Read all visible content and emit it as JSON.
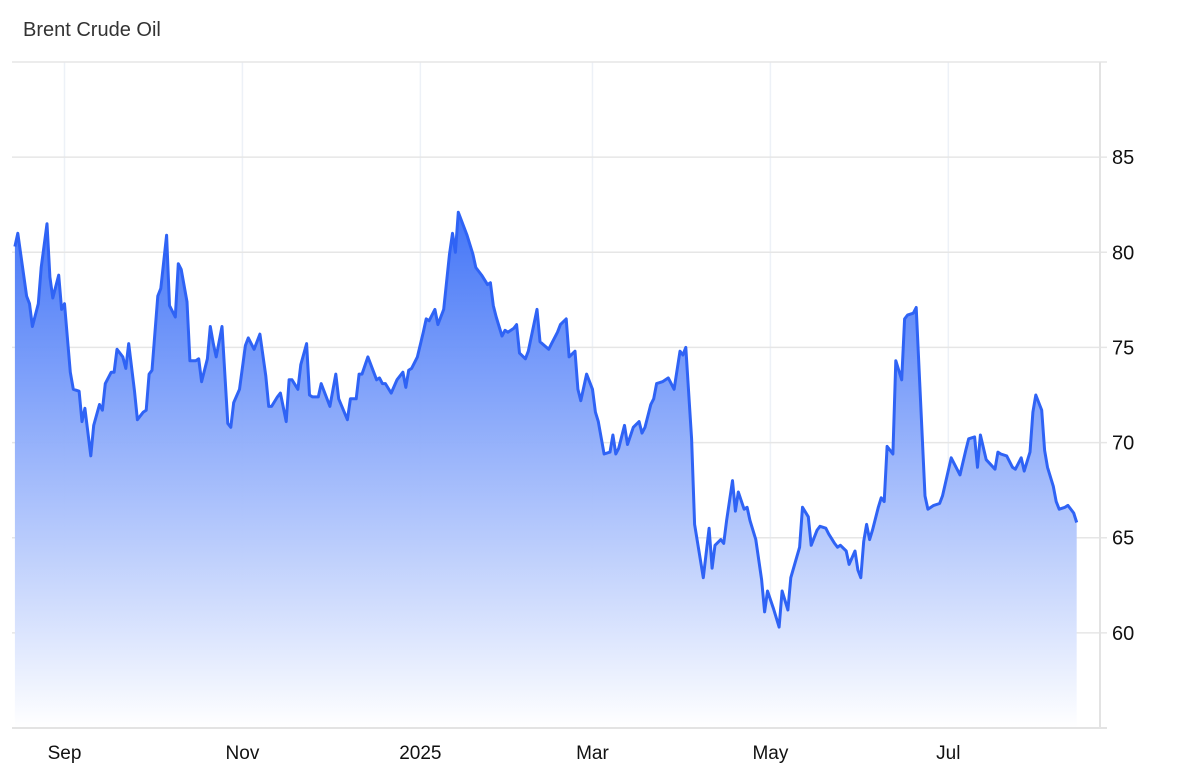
{
  "chart_data": {
    "type": "area",
    "title": "Brent Crude Oil",
    "xlabel": "",
    "ylabel": "",
    "xlim": [
      "2024-08-14",
      "2025-08-22"
    ],
    "ylim": [
      55,
      90
    ],
    "y_ticks": [
      60,
      65,
      70,
      75,
      80,
      85
    ],
    "x_ticks": [
      {
        "date": "2024-09-01",
        "label": "Sep"
      },
      {
        "date": "2024-11-01",
        "label": "Nov"
      },
      {
        "date": "2025-01-01",
        "label": "2025"
      },
      {
        "date": "2025-03-01",
        "label": "Mar"
      },
      {
        "date": "2025-05-01",
        "label": "May"
      },
      {
        "date": "2025-07-01",
        "label": "Jul"
      }
    ],
    "y_axis_position": "right",
    "grid": true,
    "colors": {
      "line": "#2f63f5",
      "fill_top": "#3b6ff7",
      "fill_bottom": "#ffffff",
      "grid": "#e6e6e6",
      "vgrid": "#edf1f7"
    },
    "series": [
      {
        "points": [
          [
            "2024-08-15",
            80.3
          ],
          [
            "2024-08-16",
            81.0
          ],
          [
            "2024-08-19",
            77.7
          ],
          [
            "2024-08-20",
            77.3
          ],
          [
            "2024-08-21",
            76.1
          ],
          [
            "2024-08-23",
            77.3
          ],
          [
            "2024-08-24",
            79.2
          ],
          [
            "2024-08-26",
            81.5
          ],
          [
            "2024-08-27",
            78.7
          ],
          [
            "2024-08-28",
            77.6
          ],
          [
            "2024-08-30",
            78.8
          ],
          [
            "2024-08-31",
            77.0
          ],
          [
            "2024-09-01",
            77.3
          ],
          [
            "2024-09-03",
            73.7
          ],
          [
            "2024-09-04",
            72.8
          ],
          [
            "2024-09-06",
            72.7
          ],
          [
            "2024-09-07",
            71.1
          ],
          [
            "2024-09-08",
            71.8
          ],
          [
            "2024-09-10",
            69.3
          ],
          [
            "2024-09-11",
            70.9
          ],
          [
            "2024-09-13",
            72.0
          ],
          [
            "2024-09-14",
            71.7
          ],
          [
            "2024-09-15",
            73.1
          ],
          [
            "2024-09-17",
            73.7
          ],
          [
            "2024-09-18",
            73.7
          ],
          [
            "2024-09-19",
            74.9
          ],
          [
            "2024-09-21",
            74.5
          ],
          [
            "2024-09-22",
            73.9
          ],
          [
            "2024-09-23",
            75.2
          ],
          [
            "2024-09-25",
            72.7
          ],
          [
            "2024-09-26",
            71.2
          ],
          [
            "2024-09-28",
            71.6
          ],
          [
            "2024-09-29",
            71.7
          ],
          [
            "2024-09-30",
            73.6
          ],
          [
            "2024-10-01",
            73.8
          ],
          [
            "2024-10-03",
            77.7
          ],
          [
            "2024-10-04",
            78.1
          ],
          [
            "2024-10-06",
            80.9
          ],
          [
            "2024-10-07",
            77.2
          ],
          [
            "2024-10-09",
            76.6
          ],
          [
            "2024-10-10",
            79.4
          ],
          [
            "2024-10-11",
            79.1
          ],
          [
            "2024-10-13",
            77.4
          ],
          [
            "2024-10-14",
            74.3
          ],
          [
            "2024-10-16",
            74.3
          ],
          [
            "2024-10-17",
            74.4
          ],
          [
            "2024-10-18",
            73.2
          ],
          [
            "2024-10-20",
            74.4
          ],
          [
            "2024-10-21",
            76.1
          ],
          [
            "2024-10-22",
            75.2
          ],
          [
            "2024-10-23",
            74.5
          ],
          [
            "2024-10-25",
            76.1
          ],
          [
            "2024-10-27",
            71.0
          ],
          [
            "2024-10-28",
            70.8
          ],
          [
            "2024-10-29",
            72.1
          ],
          [
            "2024-10-31",
            72.8
          ],
          [
            "2024-11-02",
            75.1
          ],
          [
            "2024-11-03",
            75.5
          ],
          [
            "2024-11-05",
            74.9
          ],
          [
            "2024-11-07",
            75.7
          ],
          [
            "2024-11-09",
            73.5
          ],
          [
            "2024-11-10",
            71.9
          ],
          [
            "2024-11-11",
            71.9
          ],
          [
            "2024-11-13",
            72.4
          ],
          [
            "2024-11-14",
            72.6
          ],
          [
            "2024-11-16",
            71.1
          ],
          [
            "2024-11-17",
            73.3
          ],
          [
            "2024-11-18",
            73.3
          ],
          [
            "2024-11-20",
            72.8
          ],
          [
            "2024-11-21",
            74.1
          ],
          [
            "2024-11-23",
            75.2
          ],
          [
            "2024-11-24",
            72.5
          ],
          [
            "2024-11-25",
            72.4
          ],
          [
            "2024-11-27",
            72.4
          ],
          [
            "2024-11-28",
            73.1
          ],
          [
            "2024-12-01",
            71.9
          ],
          [
            "2024-12-03",
            73.6
          ],
          [
            "2024-12-04",
            72.3
          ],
          [
            "2024-12-07",
            71.2
          ],
          [
            "2024-12-08",
            72.3
          ],
          [
            "2024-12-10",
            72.3
          ],
          [
            "2024-12-11",
            73.6
          ],
          [
            "2024-12-12",
            73.6
          ],
          [
            "2024-12-14",
            74.5
          ],
          [
            "2024-12-17",
            73.3
          ],
          [
            "2024-12-18",
            73.4
          ],
          [
            "2024-12-19",
            73.1
          ],
          [
            "2024-12-20",
            73.1
          ],
          [
            "2024-12-22",
            72.6
          ],
          [
            "2024-12-24",
            73.3
          ],
          [
            "2024-12-26",
            73.7
          ],
          [
            "2024-12-27",
            72.9
          ],
          [
            "2024-12-28",
            73.8
          ],
          [
            "2024-12-29",
            73.9
          ],
          [
            "2024-12-31",
            74.5
          ],
          [
            "2025-01-02",
            75.8
          ],
          [
            "2025-01-03",
            76.5
          ],
          [
            "2025-01-04",
            76.4
          ],
          [
            "2025-01-06",
            77.0
          ],
          [
            "2025-01-07",
            76.2
          ],
          [
            "2025-01-09",
            77.0
          ],
          [
            "2025-01-11",
            79.9
          ],
          [
            "2025-01-12",
            81.0
          ],
          [
            "2025-01-13",
            80.0
          ],
          [
            "2025-01-14",
            82.1
          ],
          [
            "2025-01-16",
            81.3
          ],
          [
            "2025-01-17",
            80.9
          ],
          [
            "2025-01-19",
            79.9
          ],
          [
            "2025-01-20",
            79.2
          ],
          [
            "2025-01-22",
            78.8
          ],
          [
            "2025-01-24",
            78.3
          ],
          [
            "2025-01-25",
            78.4
          ],
          [
            "2025-01-26",
            77.2
          ],
          [
            "2025-01-27",
            76.6
          ],
          [
            "2025-01-29",
            75.6
          ],
          [
            "2025-01-30",
            75.9
          ],
          [
            "2025-01-31",
            75.8
          ],
          [
            "2025-02-02",
            76.0
          ],
          [
            "2025-02-03",
            76.2
          ],
          [
            "2025-02-04",
            74.7
          ],
          [
            "2025-02-06",
            74.4
          ],
          [
            "2025-02-07",
            74.8
          ],
          [
            "2025-02-10",
            77.0
          ],
          [
            "2025-02-11",
            75.3
          ],
          [
            "2025-02-14",
            74.9
          ],
          [
            "2025-02-15",
            75.2
          ],
          [
            "2025-02-17",
            75.8
          ],
          [
            "2025-02-18",
            76.2
          ],
          [
            "2025-02-20",
            76.5
          ],
          [
            "2025-02-21",
            74.5
          ],
          [
            "2025-02-23",
            74.8
          ],
          [
            "2025-02-24",
            72.8
          ],
          [
            "2025-02-25",
            72.2
          ],
          [
            "2025-02-27",
            73.6
          ],
          [
            "2025-03-01",
            72.8
          ],
          [
            "2025-03-02",
            71.6
          ],
          [
            "2025-03-03",
            71.1
          ],
          [
            "2025-03-05",
            69.4
          ],
          [
            "2025-03-07",
            69.5
          ],
          [
            "2025-03-08",
            70.4
          ],
          [
            "2025-03-09",
            69.4
          ],
          [
            "2025-03-10",
            69.7
          ],
          [
            "2025-03-12",
            70.9
          ],
          [
            "2025-03-13",
            69.9
          ],
          [
            "2025-03-15",
            70.8
          ],
          [
            "2025-03-17",
            71.1
          ],
          [
            "2025-03-18",
            70.5
          ],
          [
            "2025-03-19",
            70.8
          ],
          [
            "2025-03-21",
            72.0
          ],
          [
            "2025-03-22",
            72.3
          ],
          [
            "2025-03-23",
            73.1
          ],
          [
            "2025-03-25",
            73.2
          ],
          [
            "2025-03-27",
            73.4
          ],
          [
            "2025-03-29",
            72.8
          ],
          [
            "2025-03-31",
            74.8
          ],
          [
            "2025-04-01",
            74.6
          ],
          [
            "2025-04-02",
            75.0
          ],
          [
            "2025-04-04",
            70.2
          ],
          [
            "2025-04-05",
            65.7
          ],
          [
            "2025-04-08",
            62.9
          ],
          [
            "2025-04-10",
            65.5
          ],
          [
            "2025-04-11",
            63.4
          ],
          [
            "2025-04-12",
            64.6
          ],
          [
            "2025-04-14",
            64.9
          ],
          [
            "2025-04-15",
            64.7
          ],
          [
            "2025-04-16",
            65.9
          ],
          [
            "2025-04-18",
            68.0
          ],
          [
            "2025-04-19",
            66.4
          ],
          [
            "2025-04-20",
            67.4
          ],
          [
            "2025-04-22",
            66.5
          ],
          [
            "2025-04-23",
            66.6
          ],
          [
            "2025-04-24",
            65.9
          ],
          [
            "2025-04-26",
            64.9
          ],
          [
            "2025-04-28",
            62.8
          ],
          [
            "2025-04-29",
            61.1
          ],
          [
            "2025-04-30",
            62.2
          ],
          [
            "2025-05-02",
            61.3
          ],
          [
            "2025-05-04",
            60.3
          ],
          [
            "2025-05-05",
            62.2
          ],
          [
            "2025-05-07",
            61.2
          ],
          [
            "2025-05-08",
            62.9
          ],
          [
            "2025-05-11",
            64.5
          ],
          [
            "2025-05-12",
            66.6
          ],
          [
            "2025-05-14",
            66.1
          ],
          [
            "2025-05-15",
            64.6
          ],
          [
            "2025-05-17",
            65.4
          ],
          [
            "2025-05-18",
            65.6
          ],
          [
            "2025-05-20",
            65.5
          ],
          [
            "2025-05-21",
            65.2
          ],
          [
            "2025-05-23",
            64.7
          ],
          [
            "2025-05-24",
            64.5
          ],
          [
            "2025-05-25",
            64.6
          ],
          [
            "2025-05-27",
            64.3
          ],
          [
            "2025-05-28",
            63.6
          ],
          [
            "2025-05-30",
            64.3
          ],
          [
            "2025-05-31",
            63.3
          ],
          [
            "2025-06-01",
            62.9
          ],
          [
            "2025-06-02",
            64.8
          ],
          [
            "2025-06-03",
            65.7
          ],
          [
            "2025-06-04",
            64.9
          ],
          [
            "2025-06-05",
            65.4
          ],
          [
            "2025-06-07",
            66.6
          ],
          [
            "2025-06-08",
            67.1
          ],
          [
            "2025-06-09",
            66.9
          ],
          [
            "2025-06-10",
            69.8
          ],
          [
            "2025-06-12",
            69.4
          ],
          [
            "2025-06-13",
            74.3
          ],
          [
            "2025-06-15",
            73.3
          ],
          [
            "2025-06-16",
            76.5
          ],
          [
            "2025-06-17",
            76.7
          ],
          [
            "2025-06-19",
            76.8
          ],
          [
            "2025-06-20",
            77.1
          ],
          [
            "2025-06-23",
            67.2
          ],
          [
            "2025-06-24",
            66.5
          ],
          [
            "2025-06-26",
            66.7
          ],
          [
            "2025-06-28",
            66.8
          ],
          [
            "2025-06-29",
            67.2
          ],
          [
            "2025-07-02",
            69.2
          ],
          [
            "2025-07-05",
            68.3
          ],
          [
            "2025-07-07",
            69.6
          ],
          [
            "2025-07-08",
            70.2
          ],
          [
            "2025-07-10",
            70.3
          ],
          [
            "2025-07-11",
            68.7
          ],
          [
            "2025-07-12",
            70.4
          ],
          [
            "2025-07-14",
            69.1
          ],
          [
            "2025-07-17",
            68.6
          ],
          [
            "2025-07-18",
            69.5
          ],
          [
            "2025-07-19",
            69.4
          ],
          [
            "2025-07-21",
            69.3
          ],
          [
            "2025-07-23",
            68.7
          ],
          [
            "2025-07-24",
            68.6
          ],
          [
            "2025-07-26",
            69.2
          ],
          [
            "2025-07-27",
            68.5
          ],
          [
            "2025-07-29",
            69.5
          ],
          [
            "2025-07-30",
            71.6
          ],
          [
            "2025-07-31",
            72.5
          ],
          [
            "2025-08-02",
            71.7
          ],
          [
            "2025-08-03",
            69.6
          ],
          [
            "2025-08-04",
            68.7
          ],
          [
            "2025-08-06",
            67.7
          ],
          [
            "2025-08-07",
            66.9
          ],
          [
            "2025-08-08",
            66.5
          ],
          [
            "2025-08-10",
            66.6
          ],
          [
            "2025-08-11",
            66.7
          ],
          [
            "2025-08-13",
            66.3
          ],
          [
            "2025-08-14",
            65.8
          ]
        ]
      }
    ]
  }
}
